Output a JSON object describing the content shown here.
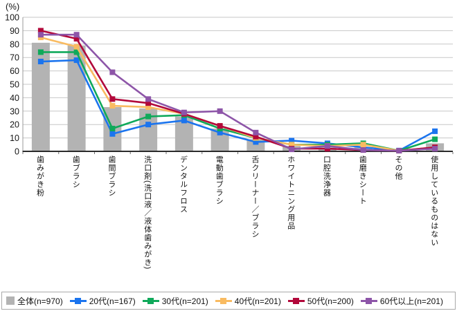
{
  "chart_data": {
    "type": "bar+line",
    "unit_label": "(%)",
    "ylim": [
      0,
      100
    ],
    "ytick_step": 10,
    "grid": true,
    "legend_position": "bottom",
    "categories": [
      "歯みがき粉",
      "歯ブラシ",
      "歯間ブラシ",
      "洗口剤(洗口液／液体歯みがき)",
      "デンタルフロス",
      "電動歯ブラシ",
      "舌クリーナー／ブラシ",
      "ホワイトニング用品",
      "口腔洗浄器",
      "歯磨きシート",
      "その他",
      "使用しているものはない"
    ],
    "bar_series": {
      "name": "全体(n=970)",
      "color": "#b3b3b3",
      "values": [
        81,
        79,
        33,
        32,
        26,
        17,
        9,
        4,
        3,
        3,
        1,
        6
      ]
    },
    "line_series": [
      {
        "name": "20代(n=167)",
        "color": "#1b74ee",
        "values": [
          67,
          68,
          13,
          20,
          23,
          14,
          7,
          8,
          6,
          3,
          0.6,
          15
        ]
      },
      {
        "name": "30代(n=201)",
        "color": "#0fa95a",
        "values": [
          74,
          74,
          17,
          26,
          27,
          17,
          10,
          5,
          5,
          6,
          0.5,
          9
        ]
      },
      {
        "name": "40代(n=201)",
        "color": "#f9bb61",
        "values": [
          85,
          78,
          34,
          33,
          28,
          19,
          10,
          5,
          4,
          5,
          0.5,
          3
        ]
      },
      {
        "name": "50代(n=200)",
        "color": "#b2083a",
        "values": [
          90,
          84,
          39,
          36,
          28,
          19,
          11,
          2,
          2,
          1,
          0.5,
          3
        ]
      },
      {
        "name": "60代以上(n=201)",
        "color": "#8d55a8",
        "values": [
          87,
          87,
          59,
          39,
          29,
          30,
          14,
          1.5,
          4,
          1,
          0.5,
          2
        ]
      }
    ],
    "axis": {
      "y_tick_labels": [
        "0",
        "10",
        "20",
        "30",
        "40",
        "50",
        "60",
        "70",
        "80",
        "90",
        "100"
      ]
    }
  }
}
